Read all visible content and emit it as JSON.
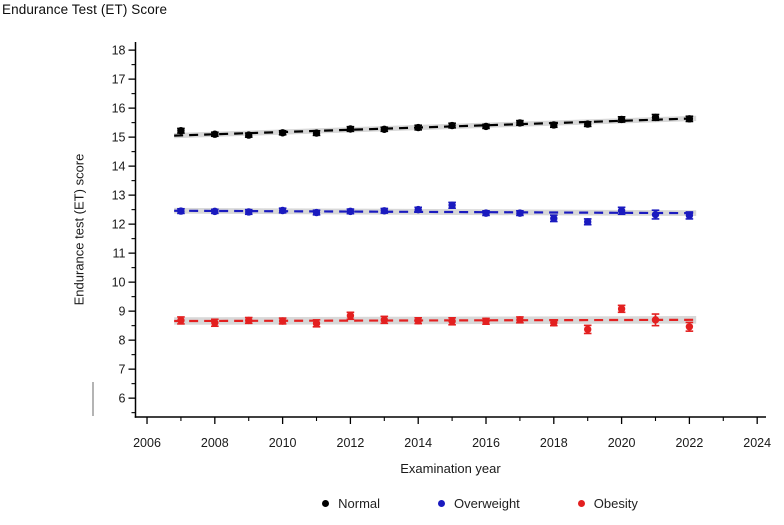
{
  "figure": {
    "title": "Endurance Test (ET) Score"
  },
  "colors": {
    "normal": "#000000",
    "overweight": "#1a1abf",
    "obesity": "#e32020",
    "band": "#d6d6d6",
    "axis": "#000000",
    "tick_text": "#1a1a1a"
  },
  "chart_data": {
    "type": "scatter",
    "title": "Endurance Test (ET) Score",
    "xlabel": "Examination year",
    "ylabel": "Endurance test (ET) score",
    "xlim": [
      2005.66,
      2024.26
    ],
    "ylim": [
      5.35,
      18.28
    ],
    "x_major_ticks": [
      2006,
      2008,
      2010,
      2012,
      2014,
      2016,
      2018,
      2020,
      2022,
      2024
    ],
    "x_minor_ticks": [
      2007,
      2009,
      2011,
      2013,
      2015,
      2017,
      2019,
      2021,
      2023
    ],
    "y_major_ticks": [
      6,
      7,
      8,
      9,
      10,
      11,
      12,
      13,
      14,
      15,
      16,
      17,
      18
    ],
    "y_minor_ticks": [
      5.5,
      6.5,
      7.5,
      8.5,
      9.5,
      10.5,
      11.5,
      12.5,
      13.5,
      14.5,
      15.5,
      16.5,
      17.5
    ],
    "grid": false,
    "legend_position": "bottom",
    "x": [
      2007,
      2008,
      2009,
      2010,
      2011,
      2012,
      2013,
      2014,
      2015,
      2016,
      2017,
      2018,
      2019,
      2020,
      2021,
      2022
    ],
    "series": [
      {
        "name": "Normal",
        "color_key": "normal",
        "values": [
          15.22,
          15.1,
          15.07,
          15.15,
          15.14,
          15.28,
          15.27,
          15.33,
          15.4,
          15.37,
          15.49,
          15.42,
          15.45,
          15.61,
          15.68,
          15.63
        ],
        "errors": [
          0.08,
          0.07,
          0.07,
          0.07,
          0.08,
          0.08,
          0.07,
          0.08,
          0.08,
          0.07,
          0.08,
          0.08,
          0.08,
          0.09,
          0.1,
          0.09
        ],
        "trend": {
          "start": 15.06,
          "end": 15.64,
          "band_halfwidth": 0.09
        }
      },
      {
        "name": "Overweight",
        "color_key": "overweight",
        "values": [
          12.45,
          12.44,
          12.42,
          12.47,
          12.4,
          12.44,
          12.46,
          12.5,
          12.65,
          12.38,
          12.38,
          12.2,
          12.08,
          12.46,
          12.33,
          12.3
        ],
        "errors": [
          0.08,
          0.07,
          0.08,
          0.08,
          0.08,
          0.08,
          0.08,
          0.08,
          0.1,
          0.08,
          0.08,
          0.11,
          0.1,
          0.12,
          0.15,
          0.12
        ],
        "trend": {
          "start": 12.46,
          "end": 12.38,
          "band_halfwidth": 0.1
        }
      },
      {
        "name": "Obesity",
        "color_key": "obesity",
        "values": [
          8.68,
          8.6,
          8.68,
          8.66,
          8.58,
          8.84,
          8.7,
          8.67,
          8.65,
          8.65,
          8.7,
          8.6,
          8.37,
          9.08,
          8.7,
          8.46
        ],
        "errors": [
          0.12,
          0.12,
          0.1,
          0.1,
          0.12,
          0.12,
          0.12,
          0.1,
          0.12,
          0.1,
          0.1,
          0.1,
          0.14,
          0.12,
          0.2,
          0.15
        ],
        "trend": {
          "start": 8.66,
          "end": 8.7,
          "band_halfwidth": 0.13
        }
      }
    ]
  }
}
